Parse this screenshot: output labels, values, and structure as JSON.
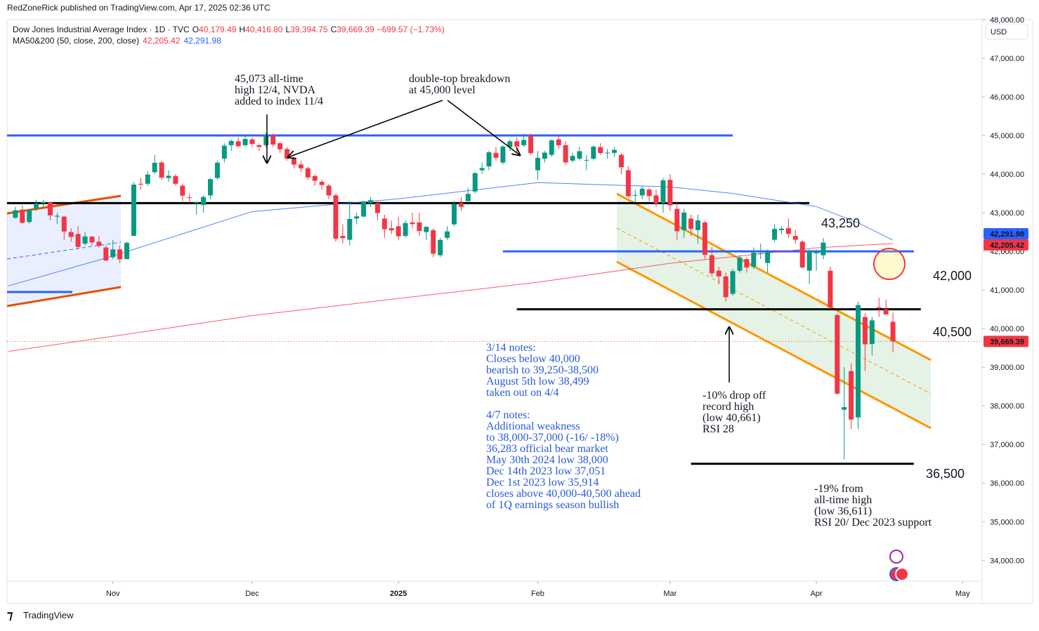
{
  "header": {
    "publisher": "RedZoneRick published on TradingView.com, Apr 17, 2025 02:36 UTC",
    "symbol": "Dow Jones Industrial Average Index · 1D · TVC",
    "ohlc": [
      {
        "key": "O",
        "value": "40,179.49"
      },
      {
        "key": "H",
        "value": "40,416.80"
      },
      {
        "key": "L",
        "value": "39,394.75"
      },
      {
        "key": "C",
        "value": "39,669.39"
      }
    ],
    "change": "−699.57 (−1.73%)",
    "indicator": "MA50&200 (50, close, 200, close)",
    "currency": "USD"
  },
  "footer": "TradingView",
  "chart_data": {
    "type": "candlestick",
    "up_color": "#089981",
    "down_color": "#f23645",
    "xlim": [
      -1.2,
      138.8
    ],
    "ylim": [
      33460,
      48000
    ],
    "xticks": [
      {
        "value": 14,
        "label": "Nov"
      },
      {
        "value": 34,
        "label": "Dec"
      },
      {
        "value": 55,
        "label": "2025"
      },
      {
        "value": 75,
        "label": "Feb"
      },
      {
        "value": 94,
        "label": "Mar"
      },
      {
        "value": 115,
        "label": "Apr"
      },
      {
        "value": 136,
        "label": "May"
      }
    ],
    "yticks": [
      {
        "value": 34000,
        "label": "34,000.00"
      },
      {
        "value": 35000,
        "label": "35,000.00"
      },
      {
        "value": 36000,
        "label": "36,000.00"
      },
      {
        "value": 37000,
        "label": "37,000.00"
      },
      {
        "value": 38000,
        "label": "38,000.00"
      },
      {
        "value": 39000,
        "label": "39,000.00"
      },
      {
        "value": 40000,
        "label": "40,000.00"
      },
      {
        "value": 41000,
        "label": "41,000.00"
      },
      {
        "value": 42000,
        "label": "42,000.00"
      },
      {
        "value": 43000,
        "label": "43,000.00"
      },
      {
        "value": 44000,
        "label": "44,000.00"
      },
      {
        "value": 45000,
        "label": "45,000.00"
      },
      {
        "value": 46000,
        "label": "46,000.00"
      },
      {
        "value": 47000,
        "label": "47,000.00"
      },
      {
        "value": 48000,
        "label": "48,000.00"
      }
    ],
    "last_price": {
      "value": 39669.39,
      "label": "39,669.39",
      "color": "#f23645"
    },
    "candles": [
      [
        42870,
        43150,
        42850,
        43065
      ],
      [
        43080,
        43190,
        42700,
        42740
      ],
      [
        42760,
        43100,
        42720,
        43077
      ],
      [
        43100,
        43330,
        43050,
        43239
      ],
      [
        43250,
        43330,
        43150,
        43275
      ],
      [
        43270,
        43280,
        42800,
        42931
      ],
      [
        42900,
        43000,
        42700,
        42924
      ],
      [
        42900,
        42920,
        42300,
        42514
      ],
      [
        42500,
        42600,
        42250,
        42374
      ],
      [
        42450,
        42650,
        42050,
        42114
      ],
      [
        42200,
        42500,
        42150,
        42387
      ],
      [
        42380,
        42400,
        42150,
        42233
      ],
      [
        42250,
        42400,
        42100,
        42141
      ],
      [
        42100,
        42150,
        41750,
        41763
      ],
      [
        41850,
        42300,
        41800,
        42052
      ],
      [
        42050,
        42150,
        41700,
        41794
      ],
      [
        41800,
        42250,
        41800,
        42222
      ],
      [
        42400,
        43800,
        42400,
        43729
      ],
      [
        43750,
        43900,
        43600,
        43729
      ],
      [
        43750,
        44080,
        43700,
        43989
      ],
      [
        44050,
        44500,
        44000,
        44293
      ],
      [
        44300,
        44350,
        43850,
        43910
      ],
      [
        43900,
        44100,
        43800,
        43958
      ],
      [
        43950,
        44000,
        43700,
        43750
      ],
      [
        43700,
        43750,
        43300,
        43444
      ],
      [
        43400,
        43500,
        43250,
        43389
      ],
      [
        43250,
        43300,
        42950,
        43268
      ],
      [
        43200,
        43450,
        43000,
        43408
      ],
      [
        43450,
        43900,
        43350,
        43870
      ],
      [
        43900,
        44350,
        43850,
        44296
      ],
      [
        44400,
        44800,
        44300,
        44736
      ],
      [
        44750,
        44900,
        44600,
        44860
      ],
      [
        44850,
        44950,
        44700,
        44722
      ],
      [
        44750,
        45000,
        44700,
        44910
      ],
      [
        44900,
        44950,
        44700,
        44782
      ],
      [
        44750,
        44800,
        44600,
        44705
      ],
      [
        44750,
        45073,
        44700,
        45014
      ],
      [
        45000,
        45050,
        44700,
        44765
      ],
      [
        44800,
        44850,
        44550,
        44642
      ],
      [
        44650,
        44700,
        44350,
        44401
      ],
      [
        44400,
        44450,
        44150,
        44247
      ],
      [
        44250,
        44350,
        44050,
        44149
      ],
      [
        44150,
        44200,
        43850,
        43914
      ],
      [
        43950,
        44000,
        43700,
        43828
      ],
      [
        43800,
        43850,
        43600,
        43717
      ],
      [
        43700,
        43750,
        43350,
        43449
      ],
      [
        43450,
        43500,
        42250,
        42327
      ],
      [
        42400,
        42700,
        42200,
        42342
      ],
      [
        42300,
        43300,
        42150,
        42840
      ],
      [
        42850,
        43000,
        42700,
        42906
      ],
      [
        42900,
        43300,
        42900,
        43297
      ],
      [
        43250,
        43400,
        43150,
        43326
      ],
      [
        43250,
        43300,
        42800,
        42992
      ],
      [
        42850,
        42950,
        42350,
        42573
      ],
      [
        42600,
        42800,
        42450,
        42544
      ],
      [
        42650,
        42900,
        42300,
        42392
      ],
      [
        42400,
        42800,
        42350,
        42732
      ],
      [
        42750,
        43000,
        42600,
        42706
      ],
      [
        42750,
        43000,
        42400,
        42528
      ],
      [
        42500,
        42650,
        42300,
        42635
      ],
      [
        42550,
        42600,
        41850,
        41938
      ],
      [
        41900,
        42350,
        41850,
        42297
      ],
      [
        42350,
        42650,
        42300,
        42518
      ],
      [
        42700,
        43300,
        42650,
        43222
      ],
      [
        43250,
        43400,
        43050,
        43153
      ],
      [
        43300,
        43650,
        43300,
        43488
      ],
      [
        43550,
        44050,
        43500,
        44025
      ],
      [
        44100,
        44300,
        44000,
        44157
      ],
      [
        44200,
        44600,
        44100,
        44566
      ],
      [
        44550,
        44700,
        44350,
        44424
      ],
      [
        44300,
        44750,
        44250,
        44714
      ],
      [
        44700,
        44900,
        44600,
        44850
      ],
      [
        44850,
        44950,
        44550,
        44713
      ],
      [
        44750,
        45050,
        44700,
        44882
      ],
      [
        45000,
        45050,
        44500,
        44545
      ],
      [
        44100,
        44600,
        43850,
        44422
      ],
      [
        44400,
        44600,
        44300,
        44556
      ],
      [
        44500,
        44900,
        44450,
        44873
      ],
      [
        44900,
        45000,
        44650,
        44748
      ],
      [
        44750,
        44850,
        44250,
        44303
      ],
      [
        44350,
        44550,
        44300,
        44470
      ],
      [
        44400,
        44700,
        44350,
        44593
      ],
      [
        44350,
        44500,
        44100,
        44368
      ],
      [
        44400,
        44750,
        44350,
        44711
      ],
      [
        44700,
        44800,
        44500,
        44546
      ],
      [
        44550,
        44650,
        44400,
        44556
      ],
      [
        44550,
        44700,
        44450,
        44627
      ],
      [
        44500,
        44550,
        44000,
        44177
      ],
      [
        44100,
        44200,
        43400,
        43428
      ],
      [
        43450,
        43600,
        43250,
        43461
      ],
      [
        43450,
        43700,
        43350,
        43621
      ],
      [
        43600,
        43650,
        43300,
        43433
      ],
      [
        43450,
        43600,
        43150,
        43239
      ],
      [
        43250,
        43900,
        43000,
        43841
      ],
      [
        43850,
        44000,
        43050,
        43191
      ],
      [
        43100,
        43250,
        42300,
        42521
      ],
      [
        42550,
        43100,
        42350,
        43006
      ],
      [
        42850,
        42950,
        42400,
        42579
      ],
      [
        42550,
        42950,
        42200,
        42802
      ],
      [
        42750,
        42800,
        41800,
        41912
      ],
      [
        41900,
        42100,
        41350,
        41433
      ],
      [
        41500,
        41600,
        41150,
        41351
      ],
      [
        41350,
        41450,
        40700,
        40814
      ],
      [
        40900,
        41550,
        40850,
        41488
      ],
      [
        41500,
        41900,
        41450,
        41842
      ],
      [
        41800,
        41850,
        41450,
        41582
      ],
      [
        41600,
        42100,
        41550,
        41965
      ],
      [
        41950,
        42200,
        41800,
        41953
      ],
      [
        41700,
        42050,
        41450,
        41985
      ],
      [
        42300,
        42700,
        42250,
        42583
      ],
      [
        42550,
        42650,
        42450,
        42588
      ],
      [
        42600,
        42850,
        42350,
        42455
      ],
      [
        42400,
        42550,
        42200,
        42300
      ],
      [
        42250,
        42300,
        41550,
        41584
      ],
      [
        41500,
        42050,
        41150,
        42002
      ],
      [
        41950,
        42050,
        41500,
        41989
      ],
      [
        41900,
        42350,
        41800,
        42226
      ],
      [
        41500,
        41600,
        40500,
        40546
      ],
      [
        40350,
        40400,
        38300,
        38315
      ],
      [
        37900,
        39000,
        36611,
        37966
      ],
      [
        38900,
        39100,
        37400,
        37646
      ],
      [
        37700,
        40700,
        37400,
        40609
      ],
      [
        40300,
        40400,
        38900,
        39594
      ],
      [
        39600,
        40300,
        39300,
        40213
      ],
      [
        40550,
        40800,
        40300,
        40525
      ],
      [
        40500,
        40750,
        40350,
        40368
      ],
      [
        40179,
        40417,
        39395,
        39669
      ]
    ],
    "ma": [
      {
        "color": "#f23645",
        "last_label": "42,205.42",
        "x": [
          -1,
          14,
          34,
          55,
          75,
          94,
          115,
          126
        ],
        "values": [
          39411,
          39800,
          40336,
          40780,
          41200,
          41690,
          42090,
          42205
        ]
      },
      {
        "color": "#2962ff",
        "last_label": "42,291.98",
        "x": [
          -1,
          14,
          34,
          55,
          75,
          94,
          103,
          115,
          121,
          126
        ],
        "values": [
          41106,
          41880,
          43030,
          43360,
          43780,
          43670,
          43500,
          43160,
          42740,
          42292
        ]
      }
    ],
    "levels": [
      {
        "value": 45000,
        "color": "#2962ff"
      },
      {
        "value": 43250,
        "label": "43,250",
        "color": "#000000"
      },
      {
        "value": 42000,
        "label": "42,000",
        "color": "#2962ff"
      },
      {
        "value": 40500,
        "label": "40,500",
        "color": "#000000"
      },
      {
        "value": 36500,
        "label": "36,500",
        "color": "#000000"
      }
    ],
    "annotations": [
      [
        "45,073 all-time",
        "high 12/4, NVDA",
        "added to index 11/4"
      ],
      [
        "double-top breakdown",
        "at 45,000 level"
      ],
      [
        "-10% drop off",
        "record high",
        "(low 40,661)",
        "RSI 28"
      ],
      [
        "-19% from",
        "all-time high",
        "(low 36,611)",
        "RSI 20/ Dec 2023 support"
      ]
    ],
    "notes": [
      [
        "3/14 notes:",
        "Closes below 40,000",
        "bearish to 39,250-38,500",
        "August 5th low 38,499",
        "taken out on 4/4"
      ],
      [
        "4/7 notes:",
        "Additional weakness",
        "to 38,000-37,000 (-16/ -18%)",
        "36,283 official bear market",
        "May 30th 2024 low 38,000",
        "Dec 14th 2023 low 37,051",
        "Dec 1st 2023 low 35,914",
        "closes above 40,000-40,500 ahead",
        "of 1Q earnings season bullish"
      ]
    ]
  }
}
